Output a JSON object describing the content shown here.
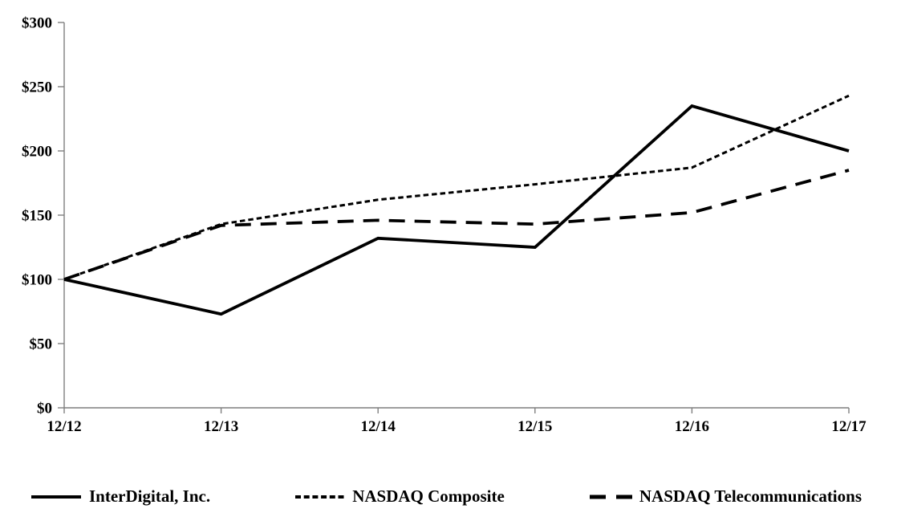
{
  "chart_data": {
    "type": "line",
    "x": [
      "12/12",
      "12/13",
      "12/14",
      "12/15",
      "12/16",
      "12/17"
    ],
    "series": [
      {
        "name": "InterDigital, Inc.",
        "dash": "solid",
        "values": [
          100,
          73,
          132,
          125,
          235,
          200
        ]
      },
      {
        "name": "NASDAQ Composite",
        "dash": "dotted",
        "values": [
          100,
          143,
          162,
          174,
          187,
          243
        ]
      },
      {
        "name": "NASDAQ Telecommunications",
        "dash": "long-dash",
        "values": [
          100,
          142,
          146,
          143,
          152,
          185
        ]
      }
    ],
    "ylim": [
      0,
      300
    ],
    "ytick_step": 50,
    "ytick_labels": [
      "$0",
      "$50",
      "$100",
      "$150",
      "$200",
      "$250",
      "$300"
    ],
    "xlabel": "",
    "ylabel": "",
    "title": "",
    "grid": false,
    "legend_position": "bottom",
    "line_color": "#000000",
    "axis_color": "#7f7f7f",
    "background": "#ffffff"
  }
}
